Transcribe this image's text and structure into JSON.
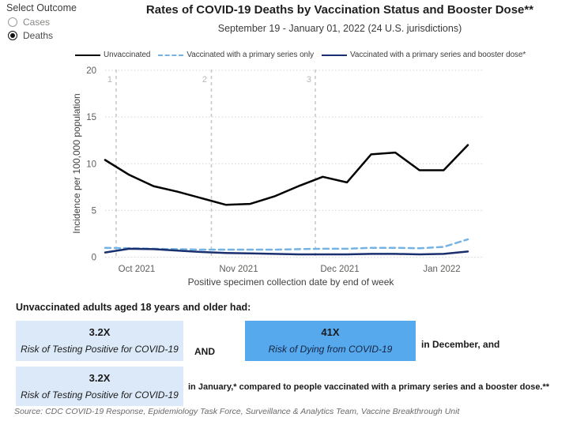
{
  "outcome_panel": {
    "label": "Select Outcome",
    "options": [
      {
        "label": "Cases",
        "selected": false
      },
      {
        "label": "Deaths",
        "selected": true
      }
    ]
  },
  "header": {
    "title": "Rates of COVID-19 Deaths by Vaccination Status and Booster Dose**",
    "subtitle": "September 19 - January 01, 2022 (24 U.S. jurisdictions)"
  },
  "chart_data": {
    "type": "line",
    "title": "Rates of COVID-19 Deaths by Vaccination Status and Booster Dose**",
    "xlabel": "Positive specimen collection date by end of week",
    "ylabel": "Incidence per 100,000 population",
    "ylim": [
      0,
      20
    ],
    "yticks": [
      "0",
      "5",
      "10",
      "15",
      "20"
    ],
    "xticks": [
      "Oct 2021",
      "Nov 2021",
      "Dec 2021",
      "Jan 2022"
    ],
    "annotations": [
      {
        "label": "1"
      },
      {
        "label": "2"
      },
      {
        "label": "3"
      }
    ],
    "grid": "dotted horizontal at each ytick; dashed vertical event markers 1-3",
    "legend_position": "top",
    "x_weeks": [
      "Sep 25",
      "Oct 2",
      "Oct 9",
      "Oct 16",
      "Oct 23",
      "Oct 30",
      "Nov 6",
      "Nov 13",
      "Nov 20",
      "Nov 27",
      "Dec 4",
      "Dec 11",
      "Dec 18",
      "Dec 25",
      "Jan 1 (a)",
      "Jan 1 (b)"
    ],
    "series": [
      {
        "key": "unvaccinated",
        "name": "Unvaccinated",
        "color": "#000000",
        "style": "solid",
        "values": [
          10.4,
          8.8,
          7.6,
          7.0,
          6.3,
          5.6,
          5.7,
          6.5,
          7.6,
          8.6,
          8.0,
          11.0,
          11.2,
          9.3,
          9.3,
          12.0
        ]
      },
      {
        "key": "primary-only",
        "name": "Vaccinated with a primary series only",
        "color": "#74b3e3",
        "style": "dashed",
        "values": [
          1.0,
          0.95,
          0.9,
          0.85,
          0.8,
          0.8,
          0.8,
          0.8,
          0.85,
          0.9,
          0.9,
          1.0,
          1.0,
          0.95,
          1.1,
          1.9
        ]
      },
      {
        "key": "primary-booster",
        "name": "Vaccinated with a primary series and booster dose*",
        "color": "#1a2f6e",
        "style": "solid",
        "values": [
          0.5,
          0.9,
          0.85,
          0.7,
          0.55,
          0.45,
          0.4,
          0.35,
          0.3,
          0.3,
          0.3,
          0.35,
          0.35,
          0.3,
          0.35,
          0.6
        ]
      }
    ]
  },
  "callouts": {
    "heading": "Unvaccinated adults aged 18 years and older had:",
    "box1": {
      "value": "3.2X",
      "label": "Risk of Testing Positive for COVID-19"
    },
    "and_label": "AND",
    "box2": {
      "value": "41X",
      "label": "Risk of Dying from COVID-19"
    },
    "december_text": "in December, and",
    "box3": {
      "value": "3.2X",
      "label": "Risk of Testing Positive for COVID-19"
    },
    "january_text": "in January,* compared to people vaccinated with a primary series and a booster dose.**",
    "colors": {
      "light_box": "#dbe9f8",
      "dark_box": "#57a9ee"
    }
  },
  "source": "Source: CDC COVID-19 Response, Epidemiology Task Force, Surveillance & Analytics Team, Vaccine Breakthrough Unit"
}
